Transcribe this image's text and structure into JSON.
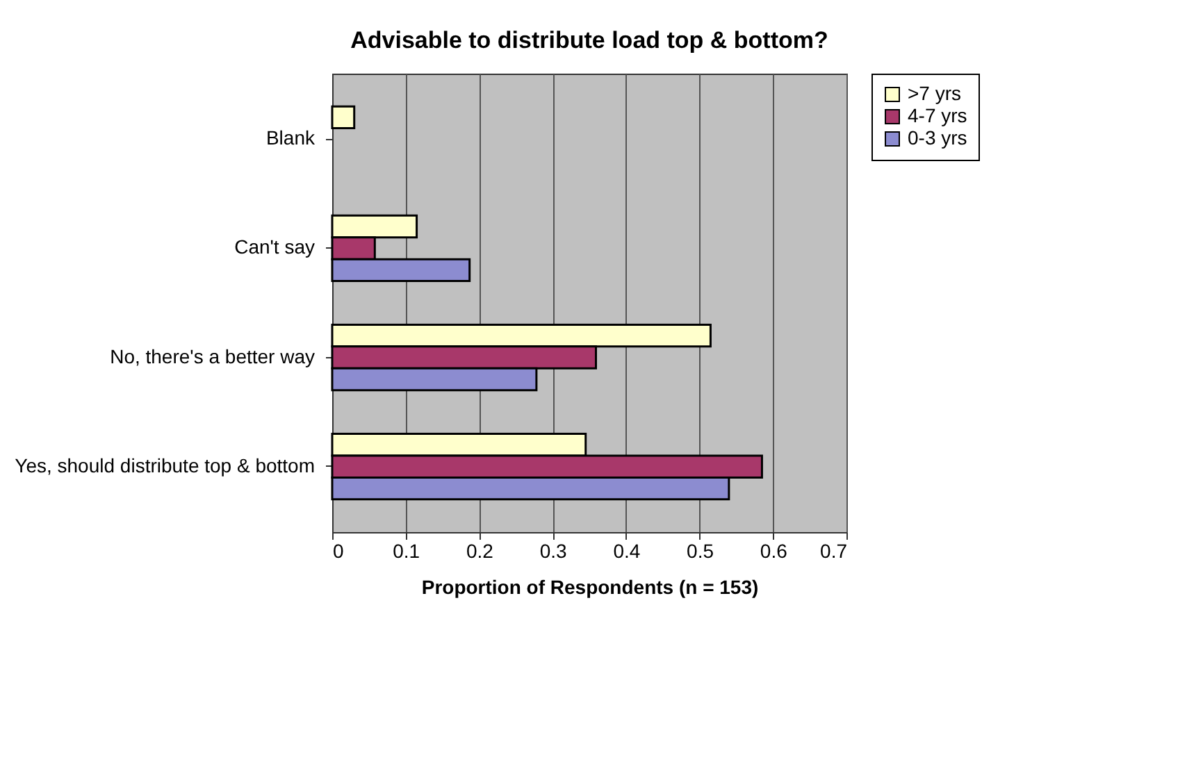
{
  "chart_data": {
    "type": "bar",
    "orientation": "horizontal",
    "title": "Advisable to distribute load top & bottom?",
    "xlabel": "Proportion of Respondents (n = 153)",
    "categories": [
      "Blank",
      "Can't say",
      "No, there's a better way",
      "Yes, should distribute top & bottom"
    ],
    "series": [
      {
        "name": ">7 yrs",
        "color": "#ffffcc",
        "values": [
          0.03,
          0.115,
          0.515,
          0.345
        ]
      },
      {
        "name": "4-7 yrs",
        "color": "#a8386a",
        "values": [
          null,
          0.058,
          0.359,
          0.585
        ]
      },
      {
        "name": "0-3 yrs",
        "color": "#8c8cd0",
        "values": [
          null,
          0.187,
          0.278,
          0.54
        ]
      }
    ],
    "xlim": [
      0,
      0.7
    ],
    "xticks": [
      0,
      0.1,
      0.2,
      0.3,
      0.4,
      0.5,
      0.6,
      0.7
    ],
    "grid": "x",
    "legend": "right"
  }
}
